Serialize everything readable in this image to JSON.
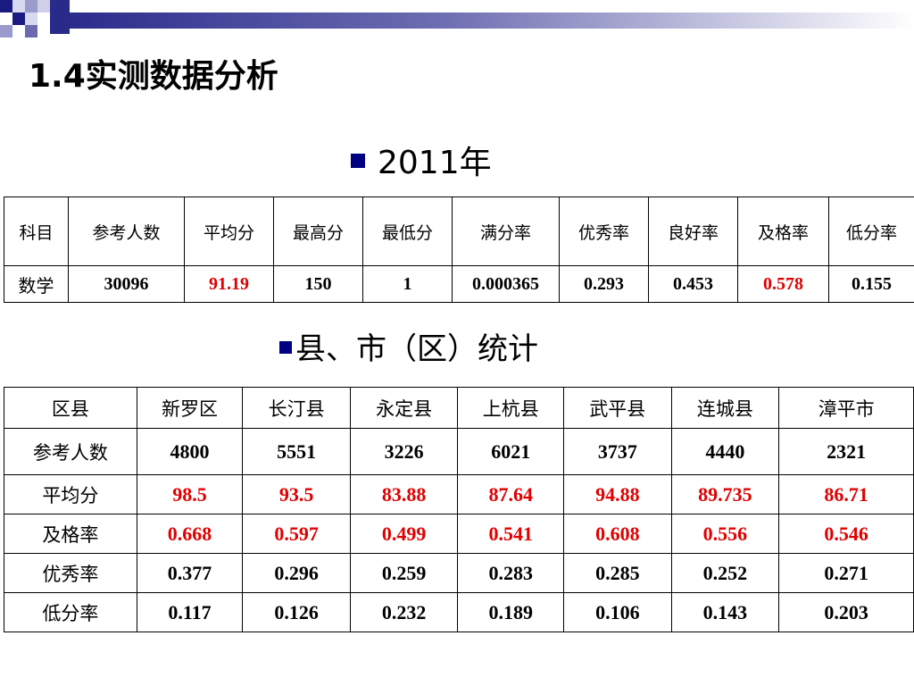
{
  "title": "1.4实测数据分析",
  "section1": {
    "label": "2011年"
  },
  "section2": {
    "label": "县、市（区）统计"
  },
  "colors": {
    "highlight": "#e00000",
    "bullet": "#000080"
  },
  "table1": {
    "headers": [
      "科目",
      "参考人数",
      "平均分",
      "最高分",
      "最低分",
      "满分率",
      "优秀率",
      "良好率",
      "及格率",
      "低分率"
    ],
    "row": [
      "数学",
      "30096",
      "91.19",
      "150",
      "1",
      "0.000365",
      "0.293",
      "0.453",
      "0.578",
      "0.155"
    ],
    "highlighted": [
      "平均分",
      "及格率"
    ]
  },
  "table2": {
    "headers": [
      "区县",
      "新罗区",
      "长汀县",
      "永定县",
      "上杭县",
      "武平县",
      "连城县",
      "漳平市"
    ],
    "rows": [
      {
        "label": "参考人数",
        "values": [
          "4800",
          "5551",
          "3226",
          "6021",
          "3737",
          "4440",
          "2321"
        ],
        "highlight": false
      },
      {
        "label": "平均分",
        "values": [
          "98.5",
          "93.5",
          "83.88",
          "87.64",
          "94.88",
          "89.735",
          "86.71"
        ],
        "highlight": true
      },
      {
        "label": "及格率",
        "values": [
          "0.668",
          "0.597",
          "0.499",
          "0.541",
          "0.608",
          "0.556",
          "0.546"
        ],
        "highlight": true
      },
      {
        "label": "优秀率",
        "values": [
          "0.377",
          "0.296",
          "0.259",
          "0.283",
          "0.285",
          "0.252",
          "0.271"
        ],
        "highlight": false
      },
      {
        "label": "低分率",
        "values": [
          "0.117",
          "0.126",
          "0.232",
          "0.189",
          "0.106",
          "0.143",
          "0.203"
        ],
        "highlight": false
      }
    ]
  }
}
